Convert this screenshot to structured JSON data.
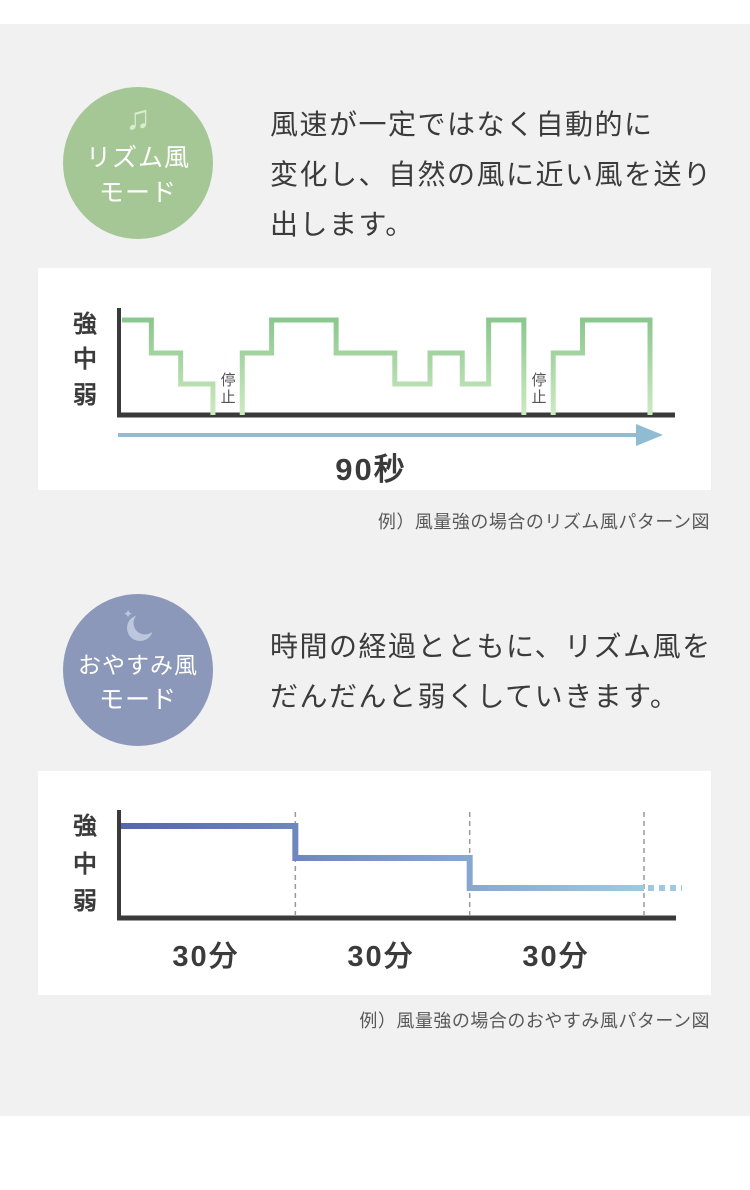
{
  "colors": {
    "page_bg": "#f1f1f2",
    "panel_bg": "#ffffff",
    "text_main": "#3b3b3b",
    "caption": "#595959",
    "axis": "#3a3a3a",
    "arrow": "#90bcd3",
    "guide_dash": "#9a9a9a",
    "stop_text": "#555555",
    "rhythm_badge": "#a5c795",
    "rhythm_icon": "#d8ecd2",
    "rhythm_line_top": "#8bc78e",
    "rhythm_line_bottom": "#cdeac0",
    "sleep_badge": "#8b98b9",
    "sleep_icon": "#bcc6dc",
    "sleep_line_start": "#5566ac",
    "sleep_line_end": "#9fc9e0"
  },
  "rhythm_section": {
    "badge_line1": "リズム風",
    "badge_line2": "モード",
    "icon_glyph": "♫",
    "desc_lines": [
      "風速が一定ではなく自動的に",
      "変化し、自然の風に近い風を送り",
      "出します。"
    ],
    "caption": "例）風量強の場合のリズム風パターン図"
  },
  "sleep_section": {
    "badge_line1": "おやすみ風",
    "badge_line2": "モード",
    "icon_star_glyph": "✦",
    "desc_lines": [
      "時間の経過とともに、リズム風を",
      "だんだんと弱くしていきます。"
    ],
    "caption": "例）風量強の場合のおやすみ風パターン図"
  },
  "chart_data": [
    {
      "type": "step-line",
      "name": "rhythm-wind-pattern",
      "y_levels": [
        "強",
        "中",
        "弱"
      ],
      "stop_label": "停止",
      "x_total_label": "90秒",
      "x_range_seconds": [
        0,
        90
      ],
      "grid": false,
      "segments": [
        {
          "level": "強",
          "from": 0,
          "to": 5
        },
        {
          "level": "中",
          "from": 5,
          "to": 10
        },
        {
          "level": "弱",
          "from": 10,
          "to": 15.5
        },
        {
          "level": "停止",
          "from": 15.5,
          "to": 20.5
        },
        {
          "level": "中",
          "from": 20.5,
          "to": 25.5
        },
        {
          "level": "強",
          "from": 25.5,
          "to": 36.5
        },
        {
          "level": "中",
          "from": 36.5,
          "to": 46.5
        },
        {
          "level": "弱",
          "from": 46.5,
          "to": 52.5
        },
        {
          "level": "中",
          "from": 52.5,
          "to": 58
        },
        {
          "level": "弱",
          "from": 58,
          "to": 62.5
        },
        {
          "level": "強",
          "from": 62.5,
          "to": 68.5
        },
        {
          "level": "停止",
          "from": 68.5,
          "to": 73.5
        },
        {
          "level": "中",
          "from": 73.5,
          "to": 78.5
        },
        {
          "level": "強",
          "from": 78.5,
          "to": 90
        }
      ],
      "final_drop": true
    },
    {
      "type": "step-line",
      "name": "sleep-wind-pattern",
      "y_levels": [
        "強",
        "中",
        "弱"
      ],
      "x_unit_labels": [
        "30分",
        "30分",
        "30分"
      ],
      "x_range_minutes": [
        0,
        90
      ],
      "boundaries_minutes": [
        30,
        60,
        90
      ],
      "grid": false,
      "segments": [
        {
          "level": "強",
          "from": 0,
          "to": 30
        },
        {
          "level": "中",
          "from": 30,
          "to": 60
        },
        {
          "level": "弱",
          "from": 60,
          "to": 90
        }
      ],
      "tail_dashed": true,
      "final_drop": false
    }
  ]
}
